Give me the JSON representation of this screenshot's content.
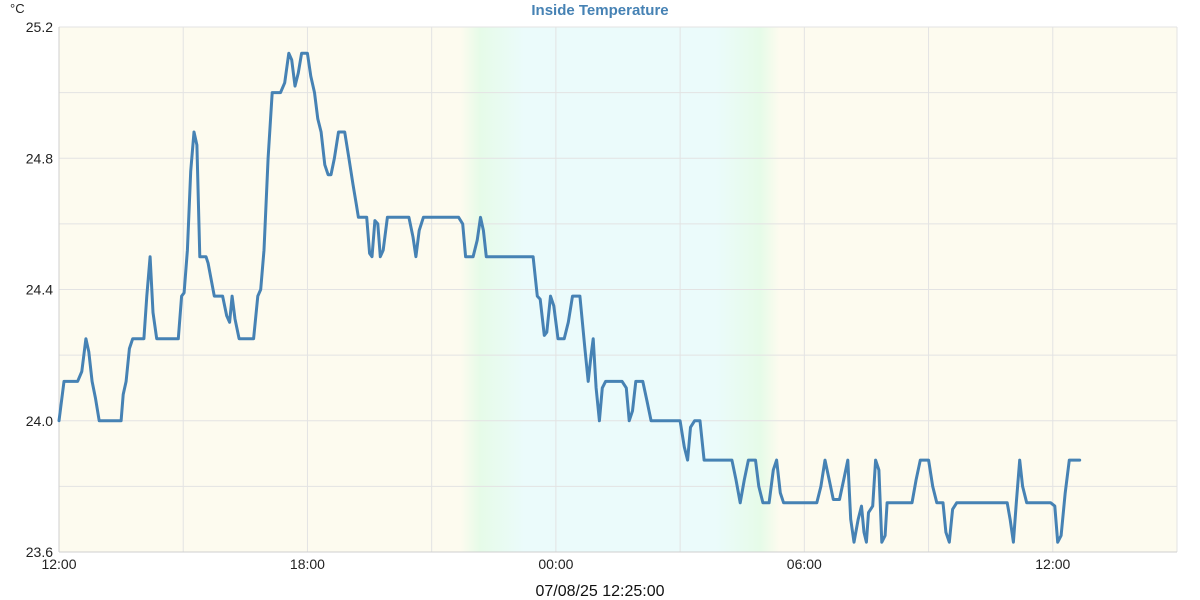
{
  "chart_data": {
    "type": "line",
    "title": "Inside Temperature",
    "y_unit": "°C",
    "timestamp": "07/08/25 12:25:00",
    "grid": true,
    "ylim": [
      23.6,
      25.2
    ],
    "y_ticks": [
      "23.6",
      "24.0",
      "24.4",
      "24.8",
      "25.2"
    ],
    "x_range_hours": [
      0,
      27
    ],
    "x_ticks": [
      {
        "hour": 0,
        "label": "12:00"
      },
      {
        "hour": 6,
        "label": "18:00"
      },
      {
        "hour": 12,
        "label": "00:00"
      },
      {
        "hour": 18,
        "label": "06:00"
      },
      {
        "hour": 24,
        "label": "12:00"
      }
    ],
    "night_band_hours": [
      9.7,
      17.4
    ],
    "colors": {
      "line": "#4682b4",
      "title": "#4682b4",
      "day_background": "#fdfbef",
      "night_background": "#ebfbfb",
      "twilight": "#e6fbe8",
      "grid": "#e3e3e3"
    },
    "series": [
      {
        "values": [
          [
            0.0,
            24.0
          ],
          [
            0.12,
            24.12
          ],
          [
            0.45,
            24.12
          ],
          [
            0.55,
            24.15
          ],
          [
            0.65,
            24.25
          ],
          [
            0.72,
            24.21
          ],
          [
            0.8,
            24.12
          ],
          [
            0.88,
            24.07
          ],
          [
            0.97,
            24.0
          ],
          [
            1.5,
            24.0
          ],
          [
            1.55,
            24.08
          ],
          [
            1.62,
            24.12
          ],
          [
            1.7,
            24.22
          ],
          [
            1.78,
            24.25
          ],
          [
            2.05,
            24.25
          ],
          [
            2.12,
            24.38
          ],
          [
            2.2,
            24.5
          ],
          [
            2.27,
            24.33
          ],
          [
            2.36,
            24.25
          ],
          [
            2.88,
            24.25
          ],
          [
            2.96,
            24.38
          ],
          [
            3.02,
            24.39
          ],
          [
            3.1,
            24.52
          ],
          [
            3.18,
            24.76
          ],
          [
            3.26,
            24.88
          ],
          [
            3.33,
            24.84
          ],
          [
            3.4,
            24.5
          ],
          [
            3.55,
            24.5
          ],
          [
            3.6,
            24.48
          ],
          [
            3.75,
            24.38
          ],
          [
            3.95,
            24.38
          ],
          [
            4.05,
            24.32
          ],
          [
            4.12,
            24.3
          ],
          [
            4.18,
            24.38
          ],
          [
            4.25,
            24.31
          ],
          [
            4.35,
            24.25
          ],
          [
            4.7,
            24.25
          ],
          [
            4.8,
            24.38
          ],
          [
            4.87,
            24.4
          ],
          [
            4.95,
            24.52
          ],
          [
            5.05,
            24.8
          ],
          [
            5.15,
            25.0
          ],
          [
            5.35,
            25.0
          ],
          [
            5.45,
            25.03
          ],
          [
            5.55,
            25.12
          ],
          [
            5.62,
            25.1
          ],
          [
            5.7,
            25.02
          ],
          [
            5.78,
            25.06
          ],
          [
            5.86,
            25.12
          ],
          [
            6.0,
            25.12
          ],
          [
            6.08,
            25.05
          ],
          [
            6.17,
            25.0
          ],
          [
            6.25,
            24.92
          ],
          [
            6.33,
            24.88
          ],
          [
            6.42,
            24.78
          ],
          [
            6.5,
            24.75
          ],
          [
            6.57,
            24.75
          ],
          [
            6.65,
            24.8
          ],
          [
            6.75,
            24.88
          ],
          [
            6.9,
            24.88
          ],
          [
            7.0,
            24.8
          ],
          [
            7.1,
            24.72
          ],
          [
            7.18,
            24.66
          ],
          [
            7.23,
            24.62
          ],
          [
            7.43,
            24.62
          ],
          [
            7.5,
            24.51
          ],
          [
            7.56,
            24.5
          ],
          [
            7.63,
            24.61
          ],
          [
            7.7,
            24.6
          ],
          [
            7.76,
            24.5
          ],
          [
            7.83,
            24.52
          ],
          [
            7.93,
            24.62
          ],
          [
            8.45,
            24.62
          ],
          [
            8.55,
            24.56
          ],
          [
            8.62,
            24.5
          ],
          [
            8.7,
            24.58
          ],
          [
            8.8,
            24.62
          ],
          [
            9.65,
            24.62
          ],
          [
            9.75,
            24.6
          ],
          [
            9.82,
            24.5
          ],
          [
            10.0,
            24.5
          ],
          [
            10.1,
            24.55
          ],
          [
            10.18,
            24.62
          ],
          [
            10.25,
            24.58
          ],
          [
            10.32,
            24.5
          ],
          [
            11.45,
            24.5
          ],
          [
            11.55,
            24.38
          ],
          [
            11.62,
            24.37
          ],
          [
            11.72,
            24.26
          ],
          [
            11.78,
            24.27
          ],
          [
            11.87,
            24.38
          ],
          [
            11.95,
            24.35
          ],
          [
            12.05,
            24.25
          ],
          [
            12.2,
            24.25
          ],
          [
            12.3,
            24.3
          ],
          [
            12.4,
            24.38
          ],
          [
            12.58,
            24.38
          ],
          [
            12.7,
            24.22
          ],
          [
            12.78,
            24.12
          ],
          [
            12.85,
            24.2
          ],
          [
            12.9,
            24.25
          ],
          [
            12.97,
            24.1
          ],
          [
            13.05,
            24.0
          ],
          [
            13.12,
            24.1
          ],
          [
            13.2,
            24.12
          ],
          [
            13.6,
            24.12
          ],
          [
            13.7,
            24.1
          ],
          [
            13.77,
            24.0
          ],
          [
            13.85,
            24.03
          ],
          [
            13.93,
            24.12
          ],
          [
            14.1,
            24.12
          ],
          [
            14.2,
            24.06
          ],
          [
            14.3,
            24.0
          ],
          [
            15.0,
            24.0
          ],
          [
            15.1,
            23.92
          ],
          [
            15.18,
            23.88
          ],
          [
            15.25,
            23.98
          ],
          [
            15.35,
            24.0
          ],
          [
            15.48,
            24.0
          ],
          [
            15.58,
            23.88
          ],
          [
            16.25,
            23.88
          ],
          [
            16.35,
            23.82
          ],
          [
            16.45,
            23.75
          ],
          [
            16.55,
            23.82
          ],
          [
            16.65,
            23.88
          ],
          [
            16.82,
            23.88
          ],
          [
            16.9,
            23.8
          ],
          [
            17.0,
            23.75
          ],
          [
            17.15,
            23.75
          ],
          [
            17.25,
            23.85
          ],
          [
            17.33,
            23.88
          ],
          [
            17.42,
            23.78
          ],
          [
            17.5,
            23.75
          ],
          [
            18.3,
            23.75
          ],
          [
            18.4,
            23.8
          ],
          [
            18.5,
            23.88
          ],
          [
            18.6,
            23.82
          ],
          [
            18.7,
            23.76
          ],
          [
            18.85,
            23.76
          ],
          [
            18.95,
            23.82
          ],
          [
            19.05,
            23.88
          ],
          [
            19.12,
            23.7
          ],
          [
            19.2,
            23.63
          ],
          [
            19.3,
            23.7
          ],
          [
            19.38,
            23.74
          ],
          [
            19.44,
            23.66
          ],
          [
            19.5,
            23.63
          ],
          [
            19.55,
            23.72
          ],
          [
            19.65,
            23.74
          ],
          [
            19.72,
            23.88
          ],
          [
            19.8,
            23.85
          ],
          [
            19.87,
            23.63
          ],
          [
            19.95,
            23.65
          ],
          [
            20.0,
            23.75
          ],
          [
            20.6,
            23.75
          ],
          [
            20.7,
            23.82
          ],
          [
            20.8,
            23.88
          ],
          [
            21.0,
            23.88
          ],
          [
            21.1,
            23.8
          ],
          [
            21.2,
            23.75
          ],
          [
            21.35,
            23.75
          ],
          [
            21.42,
            23.66
          ],
          [
            21.5,
            23.63
          ],
          [
            21.58,
            23.73
          ],
          [
            21.68,
            23.75
          ],
          [
            22.9,
            23.75
          ],
          [
            22.97,
            23.7
          ],
          [
            23.05,
            23.63
          ],
          [
            23.12,
            23.75
          ],
          [
            23.2,
            23.88
          ],
          [
            23.27,
            23.8
          ],
          [
            23.37,
            23.75
          ],
          [
            23.95,
            23.75
          ],
          [
            24.05,
            23.74
          ],
          [
            24.12,
            23.63
          ],
          [
            24.2,
            23.65
          ],
          [
            24.3,
            23.78
          ],
          [
            24.4,
            23.88
          ],
          [
            24.65,
            23.88
          ]
        ]
      }
    ]
  }
}
